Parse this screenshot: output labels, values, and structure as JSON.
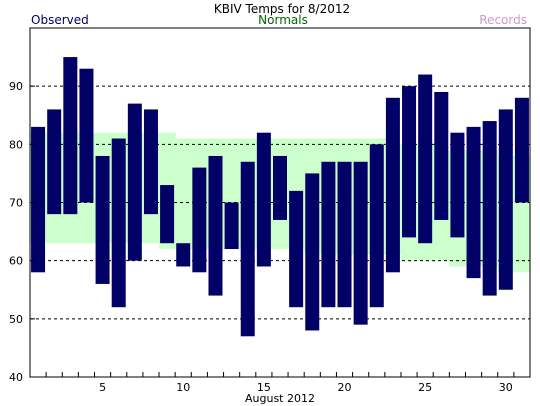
{
  "chart_data": {
    "type": "bar",
    "title": "KBIV Temps for 8/2012",
    "xlabel": "August 2012",
    "ylabel": "",
    "ylim": [
      40,
      100
    ],
    "yticks": [
      40,
      50,
      60,
      70,
      80,
      90
    ],
    "xticks": [
      5,
      10,
      15,
      20,
      25,
      30
    ],
    "grid": true,
    "legend": {
      "observed_label": "Observed",
      "normals_label": "Normals",
      "records_label": "Records",
      "placement": "top"
    },
    "colors": {
      "observed": "#000066",
      "normals": "#ccffcc",
      "records": "#cc99cc",
      "normals_text": "#006600"
    },
    "days": [
      1,
      2,
      3,
      4,
      5,
      6,
      7,
      8,
      9,
      10,
      11,
      12,
      13,
      14,
      15,
      16,
      17,
      18,
      19,
      20,
      21,
      22,
      23,
      24,
      25,
      26,
      27,
      28,
      29,
      30,
      31
    ],
    "series": [
      {
        "name": "Observed",
        "low": [
          58,
          68,
          68,
          70,
          56,
          52,
          60,
          68,
          63,
          59,
          58,
          54,
          62,
          47,
          59,
          67,
          52,
          48,
          52,
          52,
          49,
          52,
          58,
          64,
          63,
          67,
          64,
          57,
          54,
          55,
          70
        ],
        "high": [
          83,
          86,
          95,
          93,
          78,
          81,
          87,
          86,
          73,
          63,
          76,
          78,
          70,
          77,
          82,
          78,
          72,
          75,
          77,
          77,
          77,
          80,
          88,
          90,
          92,
          89,
          82,
          83,
          84,
          86,
          88
        ]
      },
      {
        "name": "Normals",
        "low": [
          63,
          63,
          63,
          63,
          63,
          63,
          63,
          63,
          62,
          62,
          62,
          62,
          62,
          62,
          62,
          62,
          62,
          61,
          61,
          61,
          61,
          61,
          61,
          60,
          60,
          60,
          59,
          59,
          59,
          58,
          58
        ],
        "high": [
          82,
          82,
          82,
          82,
          82,
          82,
          82,
          82,
          82,
          81,
          81,
          81,
          81,
          81,
          81,
          81,
          81,
          81,
          81,
          81,
          81,
          81,
          80,
          80,
          80,
          79,
          79,
          79,
          79,
          78,
          78
        ]
      }
    ]
  }
}
